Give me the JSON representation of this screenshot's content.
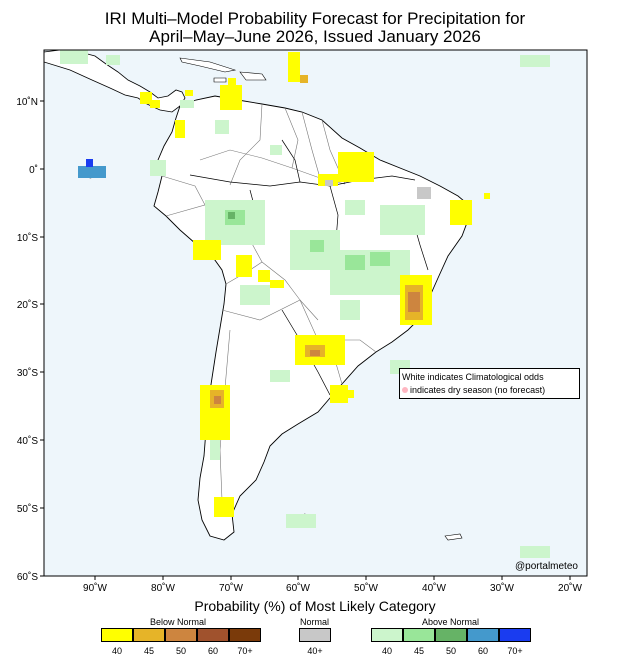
{
  "title_line1": "IRI Multi–Model Probability Forecast for Precipitation for",
  "title_line2": "April–May–June 2026, Issued January 2026",
  "lat_labels": [
    "10˚N",
    "0˚",
    "10˚S",
    "20˚S",
    "30˚S",
    "40˚S",
    "50˚S",
    "60˚S"
  ],
  "lon_labels": [
    "90˚W",
    "80˚W",
    "70˚W",
    "60˚W",
    "50˚W",
    "40˚W",
    "30˚W",
    "20˚W"
  ],
  "note_line1": "White indicates Climatological odds",
  "note_line2": "indicates dry season (no forecast)",
  "credit": "@portalmeteo",
  "legend_title": "Probability (%) of Most Likely Category",
  "below_label": "Below Normal",
  "normal_label": "Normal",
  "above_label": "Above Normal",
  "below_swatches": [
    {
      "color": "#ffff00",
      "label": "40"
    },
    {
      "color": "#e6b428",
      "label": "45"
    },
    {
      "color": "#cd853f",
      "label": "50"
    },
    {
      "color": "#a0522d",
      "label": "60"
    },
    {
      "color": "#7a3a0a",
      "label": "70+"
    }
  ],
  "normal_swatch": {
    "color": "#c8c8c8",
    "label": "40+"
  },
  "above_swatches": [
    {
      "color": "#ccf5cc",
      "label": "40"
    },
    {
      "color": "#99e699",
      "label": "45"
    },
    {
      "color": "#66b366",
      "label": "50"
    },
    {
      "color": "#4499cc",
      "label": "60"
    },
    {
      "color": "#1a3cf0",
      "label": "70+"
    }
  ],
  "ocean_color": "#eef6fb",
  "land_color": "#ffffff"
}
